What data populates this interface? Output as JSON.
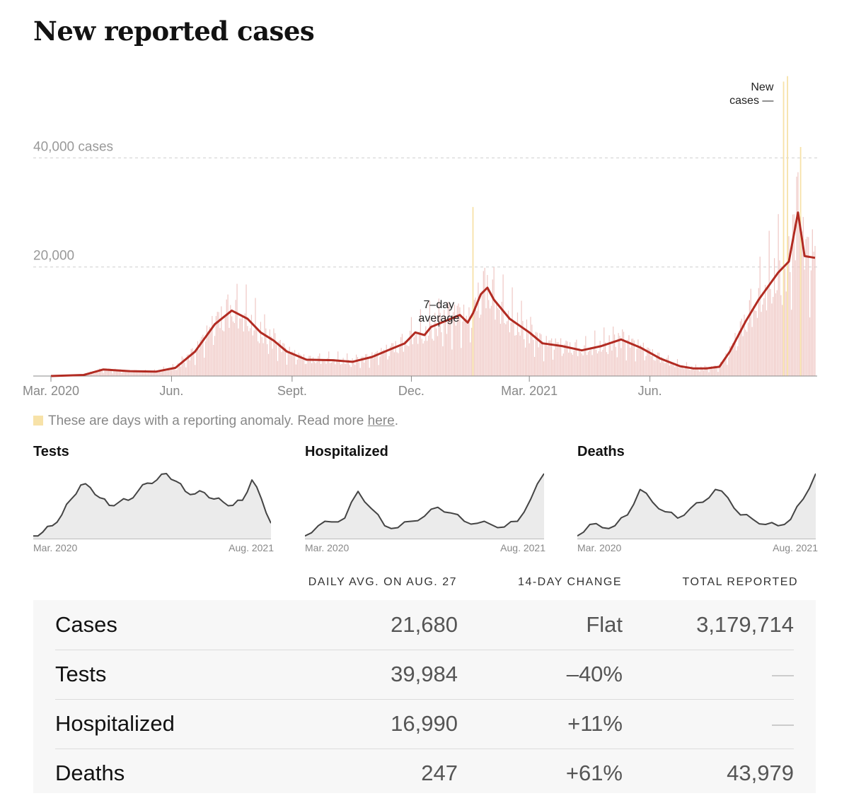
{
  "title": "New reported cases",
  "colors": {
    "line": "#b22b22",
    "bar": "#efc7c4",
    "anomaly": "#f7e2a8",
    "area": "#ebebeb",
    "mini_line": "#444444"
  },
  "chart_data": {
    "type": "bar",
    "title": "New reported cases",
    "y_unit": "cases",
    "ylim": [
      0,
      56000
    ],
    "y_ticks": [
      {
        "value": 20000,
        "label": "20,000"
      },
      {
        "value": 40000,
        "label": "40,000 cases"
      }
    ],
    "x_ticks": [
      {
        "day": 0,
        "label": "Mar. 2020"
      },
      {
        "day": 92,
        "label": "Jun."
      },
      {
        "day": 184,
        "label": "Sept."
      },
      {
        "day": 275,
        "label": "Dec."
      },
      {
        "day": 365,
        "label": "Mar. 2021"
      },
      {
        "day": 457,
        "label": "Jun."
      }
    ],
    "days_total": 545,
    "series": [
      {
        "name": "7-day average",
        "points": [
          [
            0,
            0
          ],
          [
            25,
            200
          ],
          [
            40,
            1200
          ],
          [
            60,
            900
          ],
          [
            80,
            800
          ],
          [
            95,
            1500
          ],
          [
            110,
            4500
          ],
          [
            125,
            9500
          ],
          [
            138,
            12000
          ],
          [
            150,
            10500
          ],
          [
            160,
            8000
          ],
          [
            170,
            6500
          ],
          [
            180,
            4500
          ],
          [
            195,
            3000
          ],
          [
            215,
            2900
          ],
          [
            230,
            2600
          ],
          [
            245,
            3500
          ],
          [
            260,
            5000
          ],
          [
            270,
            6000
          ],
          [
            278,
            8000
          ],
          [
            285,
            7500
          ],
          [
            290,
            9000
          ],
          [
            300,
            10000
          ],
          [
            312,
            11200
          ],
          [
            318,
            9800
          ],
          [
            322,
            11500
          ],
          [
            328,
            15000
          ],
          [
            333,
            16200
          ],
          [
            338,
            14000
          ],
          [
            350,
            10500
          ],
          [
            365,
            8000
          ],
          [
            375,
            6000
          ],
          [
            390,
            5500
          ],
          [
            405,
            4700
          ],
          [
            420,
            5500
          ],
          [
            435,
            6700
          ],
          [
            450,
            5200
          ],
          [
            465,
            3200
          ],
          [
            480,
            1800
          ],
          [
            490,
            1400
          ],
          [
            500,
            1400
          ],
          [
            510,
            1700
          ],
          [
            518,
            4500
          ],
          [
            530,
            10000
          ],
          [
            540,
            14000
          ],
          [
            555,
            19000
          ],
          [
            563,
            21000
          ],
          [
            570,
            30000
          ],
          [
            575,
            22000
          ],
          [
            583,
            21680
          ]
        ]
      }
    ],
    "annotations": [
      {
        "text": [
          "7–day",
          "average"
        ],
        "day": 296
      },
      {
        "text": [
          "New",
          "cases —"
        ],
        "day": 560
      }
    ],
    "anomaly_days": [
      {
        "day": 322,
        "value": 31000
      },
      {
        "day": 559,
        "value": 54000
      },
      {
        "day": 562,
        "value": 55000
      },
      {
        "day": 572,
        "value": 42000
      }
    ]
  },
  "anomaly_note": {
    "text": "These are days with a reporting anomaly. Read more ",
    "link": "here",
    "end": "."
  },
  "mini_charts": [
    {
      "title": "Tests",
      "start_label": "Mar. 2020",
      "end_label": "Aug. 2021",
      "points": [
        0.02,
        0.08,
        0.18,
        0.35,
        0.6,
        0.82,
        0.78,
        0.62,
        0.5,
        0.55,
        0.58,
        0.72,
        0.85,
        0.9,
        1.0,
        0.88,
        0.72,
        0.68,
        0.7,
        0.6,
        0.55,
        0.5,
        0.58,
        0.9,
        0.6,
        0.22
      ]
    },
    {
      "title": "Hospitalized",
      "start_label": "Mar. 2020",
      "end_label": "Aug. 2021",
      "points": [
        0.02,
        0.18,
        0.24,
        0.3,
        0.72,
        0.45,
        0.18,
        0.15,
        0.25,
        0.33,
        0.47,
        0.38,
        0.25,
        0.22,
        0.2,
        0.16,
        0.25,
        0.6,
        1.0
      ]
    },
    {
      "title": "Deaths",
      "start_label": "Mar. 2020",
      "end_label": "Aug. 2021",
      "points": [
        0.02,
        0.2,
        0.15,
        0.18,
        0.35,
        0.75,
        0.55,
        0.4,
        0.3,
        0.45,
        0.55,
        0.75,
        0.62,
        0.35,
        0.28,
        0.2,
        0.18,
        0.28,
        0.6,
        1.0
      ]
    }
  ],
  "table": {
    "headers": [
      "DAILY AVG. ON AUG. 27",
      "14-DAY CHANGE",
      "TOTAL REPORTED"
    ],
    "rows": [
      {
        "label": "Cases",
        "daily_avg": "21,680",
        "change": "Flat",
        "total": "3,179,714"
      },
      {
        "label": "Tests",
        "daily_avg": "39,984",
        "change": "–40%",
        "total": "—"
      },
      {
        "label": "Hospitalized",
        "daily_avg": "16,990",
        "change": "+11%",
        "total": "—"
      },
      {
        "label": "Deaths",
        "daily_avg": "247",
        "change": "+61%",
        "total": "43,979"
      }
    ]
  }
}
